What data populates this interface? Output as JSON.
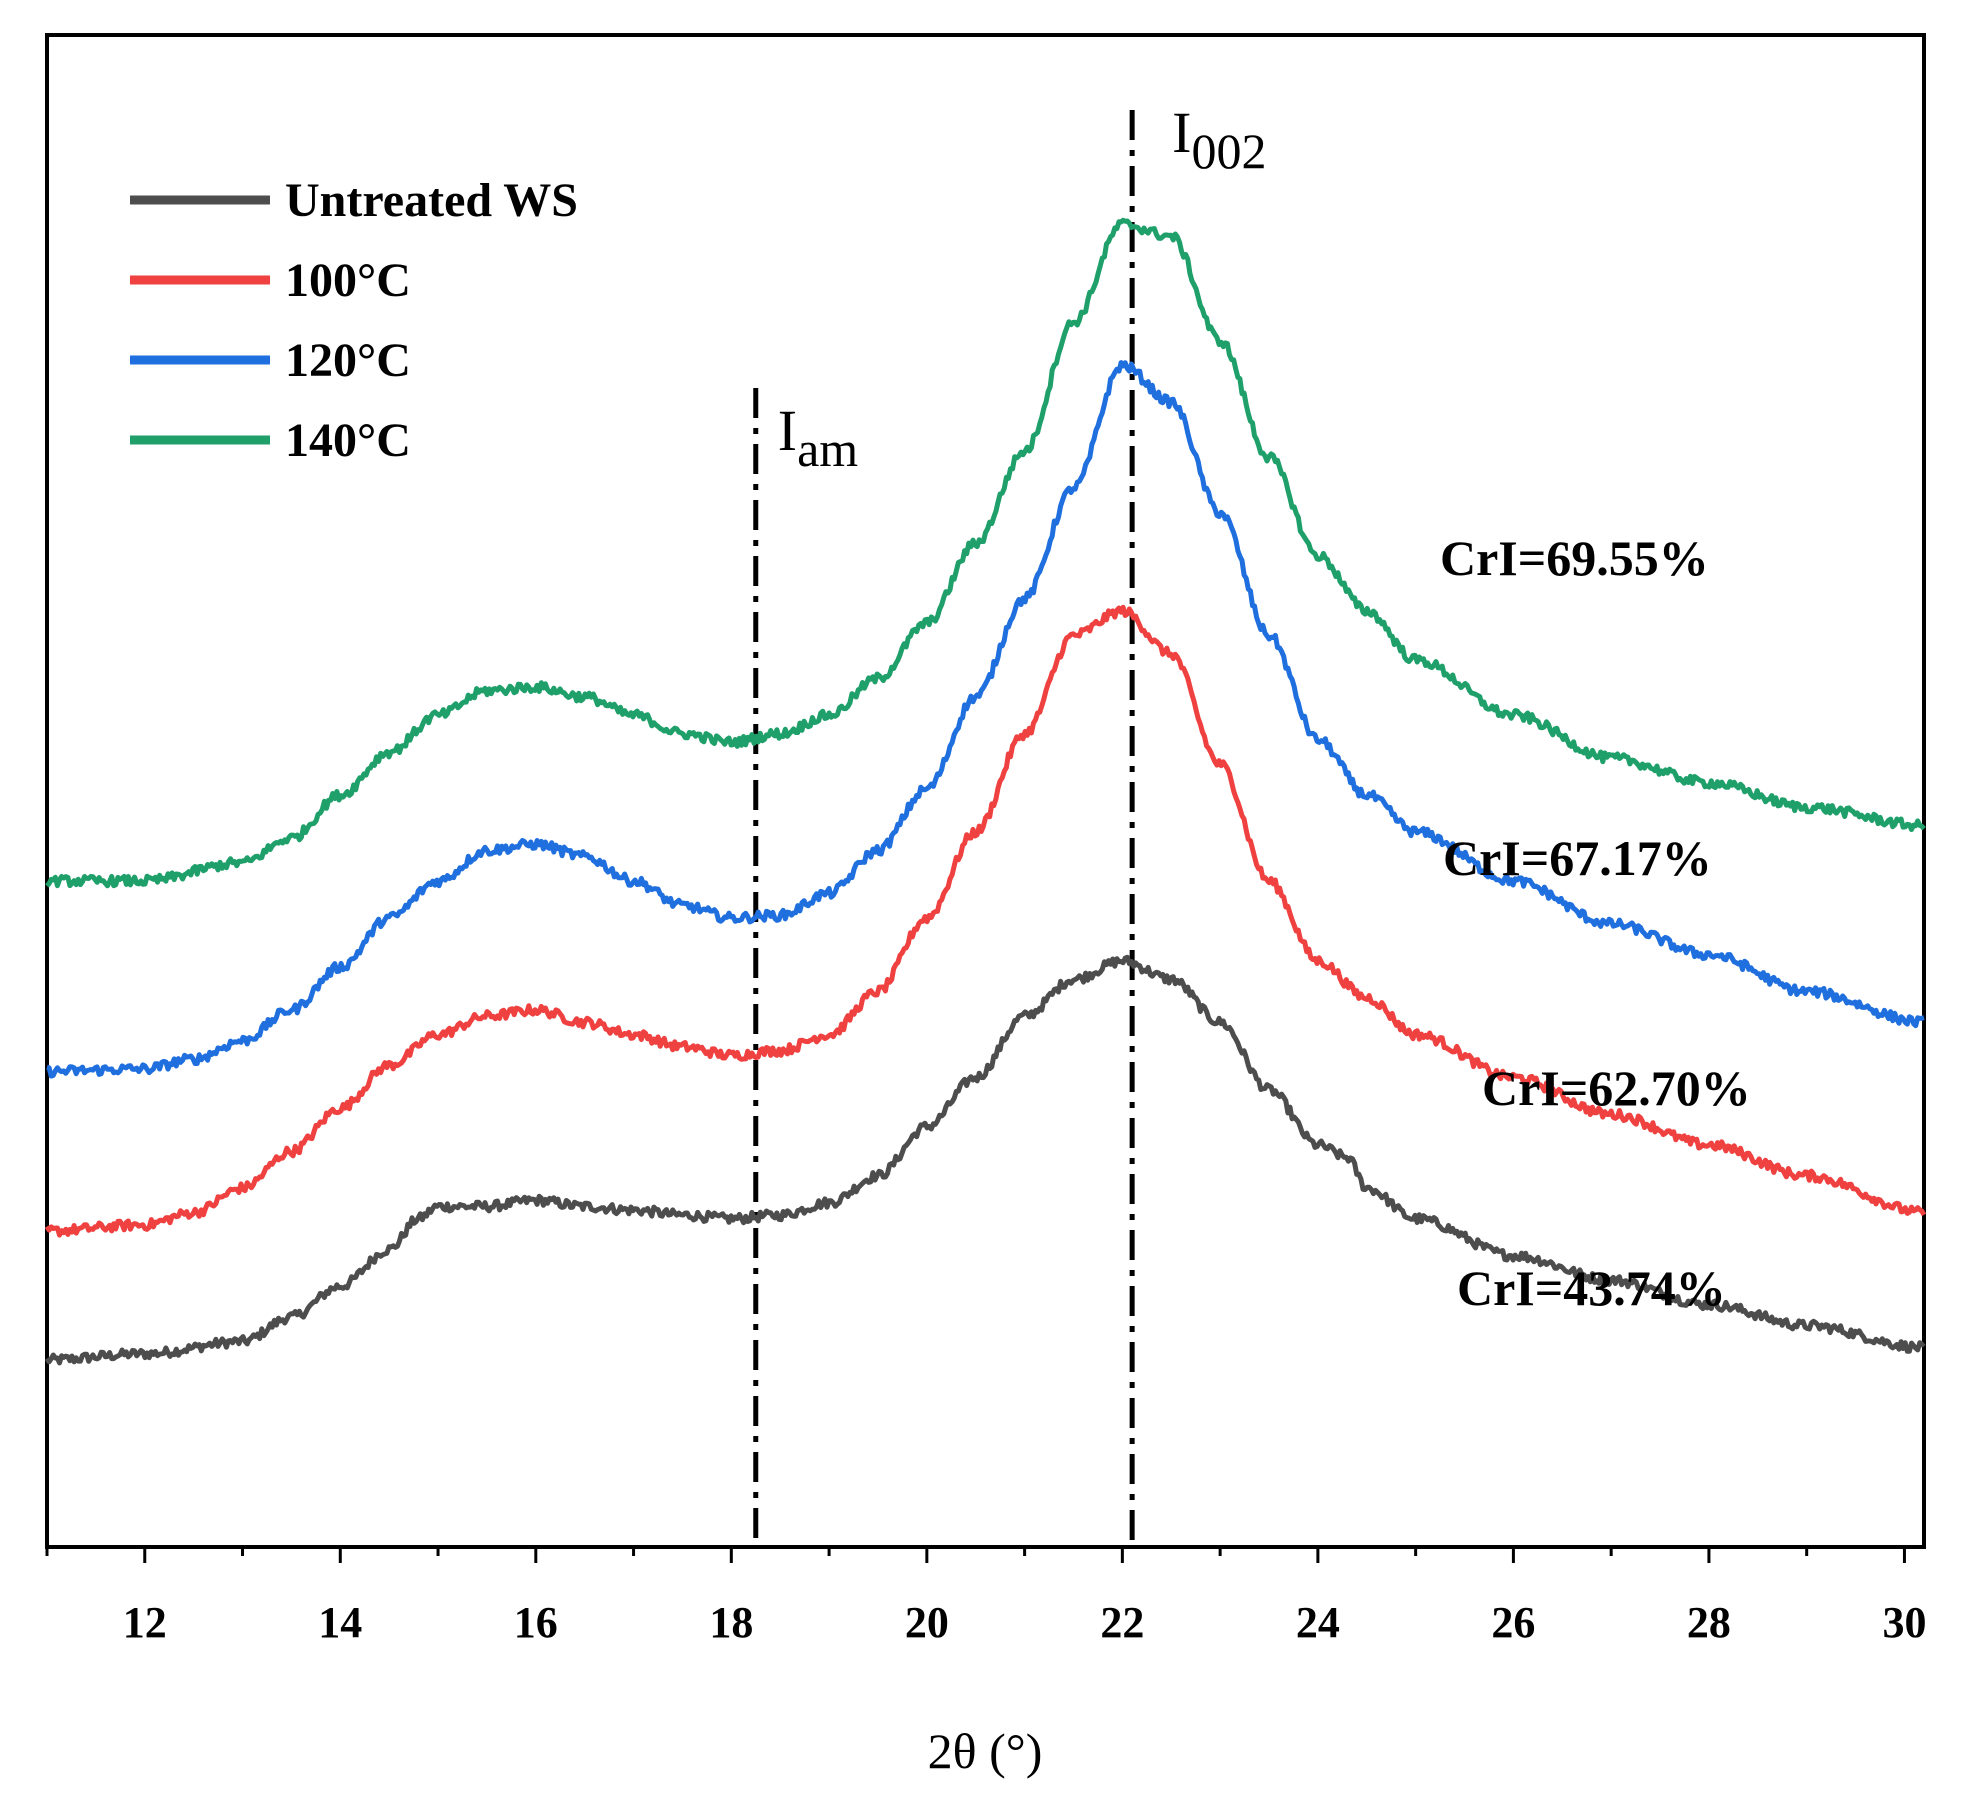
{
  "chart_data": {
    "type": "line",
    "title": "",
    "xlabel": "2θ (°)",
    "ylabel": "",
    "xlim": [
      11.0,
      30.2
    ],
    "x_ticks_major": [
      12,
      14,
      16,
      18,
      20,
      22,
      24,
      26,
      28,
      30
    ],
    "x_tick_labels": [
      "12",
      "14",
      "16",
      "18",
      "20",
      "22",
      "24",
      "26",
      "28",
      "30"
    ],
    "y_ticks_shown": false,
    "grid": false,
    "legend_position": "top-left",
    "series": [
      {
        "name": "Untreated WS",
        "color": "#4d4d4d",
        "points": [
          [
            11.0,
            0.11
          ],
          [
            12.0,
            0.115
          ],
          [
            13.0,
            0.125
          ],
          [
            13.5,
            0.145
          ],
          [
            14.0,
            0.17
          ],
          [
            14.5,
            0.2
          ],
          [
            14.8,
            0.225
          ],
          [
            15.0,
            0.235
          ],
          [
            15.5,
            0.235
          ],
          [
            16.0,
            0.24
          ],
          [
            16.5,
            0.235
          ],
          [
            17.0,
            0.232
          ],
          [
            17.5,
            0.228
          ],
          [
            18.0,
            0.225
          ],
          [
            18.5,
            0.228
          ],
          [
            19.0,
            0.238
          ],
          [
            19.5,
            0.26
          ],
          [
            20.0,
            0.3
          ],
          [
            20.5,
            0.34
          ],
          [
            21.0,
            0.39
          ],
          [
            21.5,
            0.42
          ],
          [
            22.0,
            0.435
          ],
          [
            22.5,
            0.42
          ],
          [
            23.0,
            0.385
          ],
          [
            23.5,
            0.33
          ],
          [
            24.0,
            0.285
          ],
          [
            24.3,
            0.275
          ],
          [
            24.5,
            0.25
          ],
          [
            25.0,
            0.225
          ],
          [
            26.0,
            0.195
          ],
          [
            27.0,
            0.175
          ],
          [
            28.0,
            0.155
          ],
          [
            29.0,
            0.138
          ],
          [
            30.2,
            0.12
          ]
        ]
      },
      {
        "name": "100°C",
        "color": "#f04141",
        "points": [
          [
            11.0,
            0.215
          ],
          [
            12.0,
            0.22
          ],
          [
            12.5,
            0.23
          ],
          [
            13.0,
            0.25
          ],
          [
            13.5,
            0.28
          ],
          [
            14.0,
            0.315
          ],
          [
            14.5,
            0.35
          ],
          [
            15.0,
            0.375
          ],
          [
            15.5,
            0.39
          ],
          [
            16.0,
            0.395
          ],
          [
            16.5,
            0.385
          ],
          [
            17.0,
            0.375
          ],
          [
            17.5,
            0.365
          ],
          [
            18.0,
            0.358
          ],
          [
            18.5,
            0.362
          ],
          [
            19.0,
            0.375
          ],
          [
            19.5,
            0.41
          ],
          [
            20.0,
            0.47
          ],
          [
            20.5,
            0.54
          ],
          [
            21.0,
            0.62
          ],
          [
            21.5,
            0.7
          ],
          [
            22.0,
            0.72
          ],
          [
            22.5,
            0.685
          ],
          [
            23.0,
            0.595
          ],
          [
            23.5,
            0.5
          ],
          [
            24.0,
            0.435
          ],
          [
            24.5,
            0.405
          ],
          [
            25.0,
            0.375
          ],
          [
            26.0,
            0.34
          ],
          [
            27.0,
            0.31
          ],
          [
            28.0,
            0.285
          ],
          [
            29.0,
            0.26
          ],
          [
            30.2,
            0.23
          ]
        ]
      },
      {
        "name": "120°C",
        "color": "#1f6fde",
        "points": [
          [
            11.0,
            0.345
          ],
          [
            12.0,
            0.347
          ],
          [
            12.5,
            0.355
          ],
          [
            13.0,
            0.37
          ],
          [
            13.5,
            0.395
          ],
          [
            14.0,
            0.43
          ],
          [
            14.5,
            0.47
          ],
          [
            15.0,
            0.5
          ],
          [
            15.5,
            0.525
          ],
          [
            16.0,
            0.53
          ],
          [
            16.5,
            0.52
          ],
          [
            17.0,
            0.5
          ],
          [
            17.5,
            0.48
          ],
          [
            18.0,
            0.47
          ],
          [
            18.5,
            0.472
          ],
          [
            19.0,
            0.49
          ],
          [
            19.5,
            0.525
          ],
          [
            20.0,
            0.575
          ],
          [
            20.5,
            0.65
          ],
          [
            21.0,
            0.73
          ],
          [
            21.5,
            0.82
          ],
          [
            22.0,
            0.92
          ],
          [
            22.5,
            0.89
          ],
          [
            23.0,
            0.8
          ],
          [
            23.5,
            0.7
          ],
          [
            24.0,
            0.615
          ],
          [
            24.5,
            0.57
          ],
          [
            25.0,
            0.54
          ],
          [
            26.0,
            0.5
          ],
          [
            27.0,
            0.465
          ],
          [
            28.0,
            0.44
          ],
          [
            29.0,
            0.41
          ],
          [
            30.2,
            0.385
          ]
        ]
      },
      {
        "name": "140°C",
        "color": "#1fa06a",
        "points": [
          [
            11.0,
            0.5
          ],
          [
            12.0,
            0.5
          ],
          [
            13.0,
            0.515
          ],
          [
            13.5,
            0.535
          ],
          [
            14.0,
            0.57
          ],
          [
            14.5,
            0.605
          ],
          [
            15.0,
            0.635
          ],
          [
            15.5,
            0.655
          ],
          [
            16.0,
            0.658
          ],
          [
            16.5,
            0.65
          ],
          [
            17.0,
            0.635
          ],
          [
            17.5,
            0.62
          ],
          [
            18.0,
            0.613
          ],
          [
            18.5,
            0.62
          ],
          [
            19.0,
            0.635
          ],
          [
            19.5,
            0.665
          ],
          [
            20.0,
            0.71
          ],
          [
            20.5,
            0.775
          ],
          [
            21.0,
            0.85
          ],
          [
            21.5,
            0.955
          ],
          [
            22.0,
            1.035
          ],
          [
            22.5,
            1.025
          ],
          [
            23.0,
            0.94
          ],
          [
            23.5,
            0.845
          ],
          [
            24.0,
            0.765
          ],
          [
            24.5,
            0.72
          ],
          [
            25.0,
            0.68
          ],
          [
            26.0,
            0.635
          ],
          [
            27.0,
            0.6
          ],
          [
            28.0,
            0.58
          ],
          [
            29.0,
            0.56
          ],
          [
            30.2,
            0.545
          ]
        ]
      }
    ],
    "reference_lines": [
      {
        "x": 18.25,
        "label": "I",
        "subscript": "am",
        "style": "dash-dot"
      },
      {
        "x": 22.1,
        "label": "I",
        "subscript": "002",
        "style": "dash-dot"
      }
    ],
    "annotations": [
      {
        "text": "CrI=69.55%",
        "series": "140°C"
      },
      {
        "text": "CrI=67.17%",
        "series": "120°C"
      },
      {
        "text": "CrI=62.70%",
        "series": "100°C"
      },
      {
        "text": "CrI=43.74%",
        "series": "Untreated WS"
      }
    ]
  }
}
